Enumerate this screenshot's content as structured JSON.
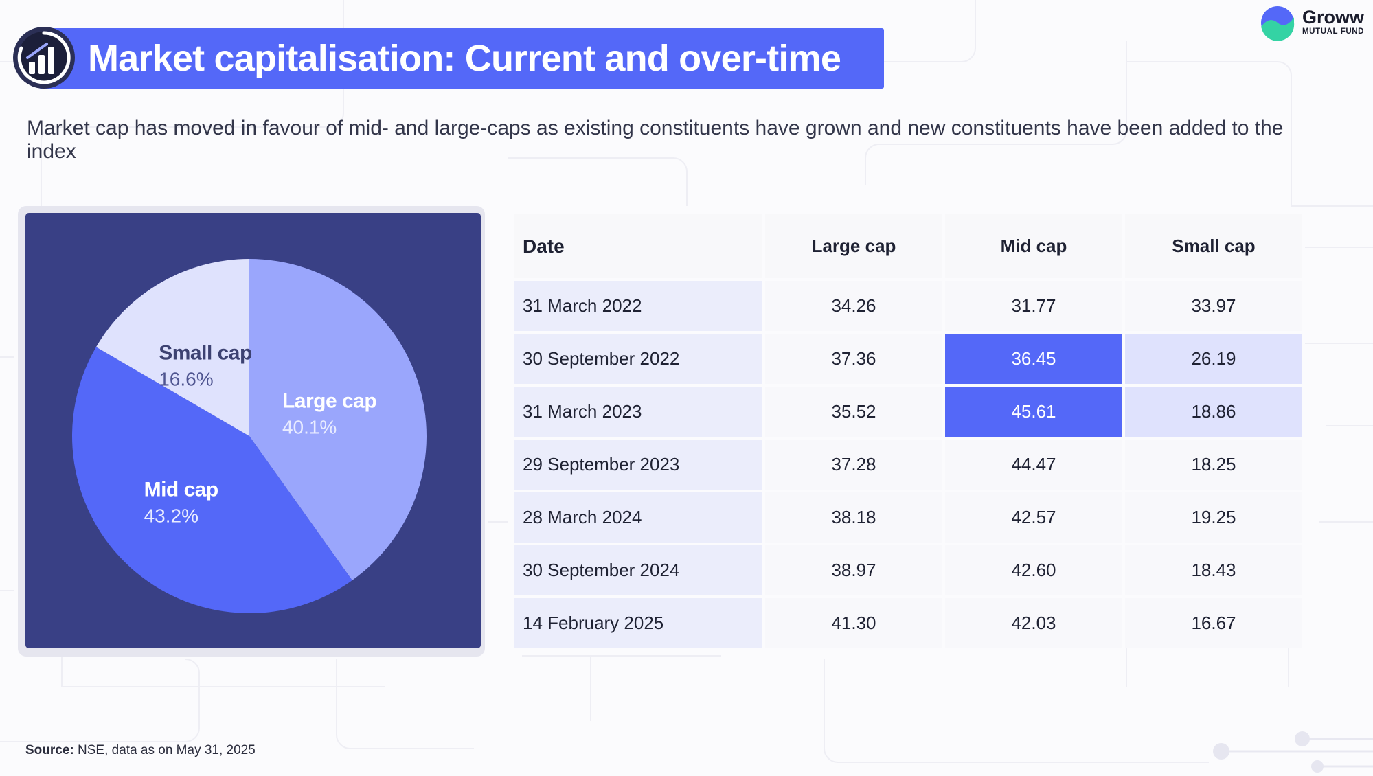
{
  "header": {
    "title": "Market capitalisation: Current and over-time",
    "subtitle": "Market cap has moved in favour of mid- and large-caps as existing constituents have grown and new constituents have been added to the index"
  },
  "brand": {
    "name": "Groww",
    "tagline": "MUTUAL FUND",
    "accent": "#5468f8",
    "logo_colors": [
      "#5468f8",
      "#34d3a4"
    ]
  },
  "chart_data": [
    {
      "type": "pie",
      "slices": [
        {
          "label": "Large cap",
          "value_label": "40.1%",
          "value": 40.1,
          "color": "#9aa6fc"
        },
        {
          "label": "Mid cap",
          "value_label": "43.2%",
          "value": 43.2,
          "color": "#5468f8"
        },
        {
          "label": "Small cap",
          "value_label": "16.6%",
          "value": 16.6,
          "color": "#dfe2fd"
        }
      ],
      "panel_color": "#394085"
    },
    {
      "type": "table",
      "columns": [
        "Date",
        "Large cap",
        "Mid cap",
        "Small cap"
      ],
      "rows": [
        {
          "date": "31 March 2022",
          "large": "34.26",
          "mid": "31.77",
          "small": "33.97"
        },
        {
          "date": "30 September 2022",
          "large": "37.36",
          "mid": "36.45",
          "small": "26.19"
        },
        {
          "date": "31 March 2023",
          "large": "35.52",
          "mid": "45.61",
          "small": "18.86"
        },
        {
          "date": "29 September 2023",
          "large": "37.28",
          "mid": "44.47",
          "small": "18.25"
        },
        {
          "date": "28 March 2024",
          "large": "38.18",
          "mid": "42.57",
          "small": "19.25"
        },
        {
          "date": "30 September 2024",
          "large": "38.97",
          "mid": "42.60",
          "small": "18.43"
        },
        {
          "date": "14 February 2025",
          "large": "41.30",
          "mid": "42.03",
          "small": "16.67"
        }
      ],
      "highlight_colors": {
        "dark": "#5468f8",
        "light": "#dfe2fd"
      }
    }
  ],
  "footer": {
    "source_label": "Source:",
    "source_text": " NSE, data as on May 31, 2025"
  }
}
